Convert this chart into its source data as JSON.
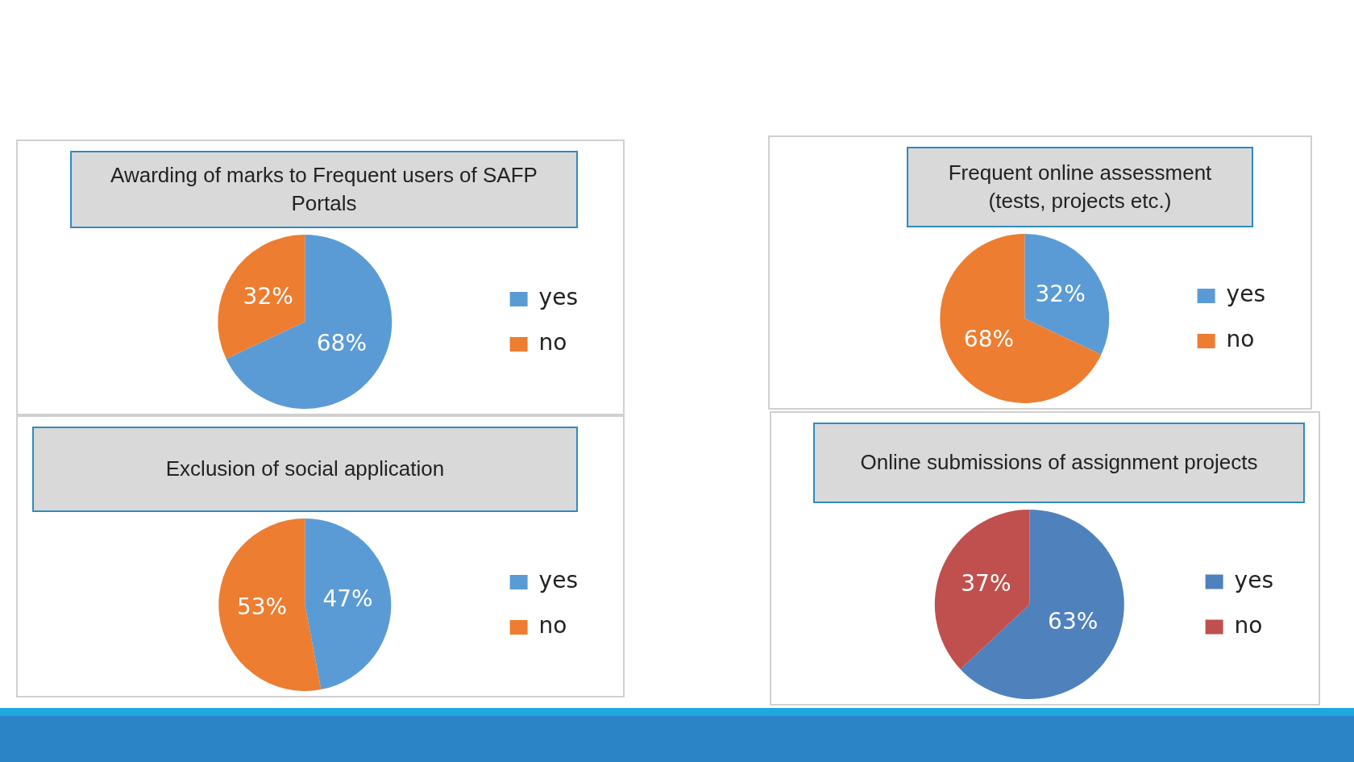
{
  "chart_data": [
    {
      "type": "pie",
      "title": "Awarding of marks to Frequent users of SAFP Portals",
      "categories": [
        "yes",
        "no"
      ],
      "values": [
        68,
        32
      ],
      "colors": [
        "#5b9bd5",
        "#ed7d31"
      ],
      "value_labels": [
        "68%",
        "32%"
      ],
      "legend": "right"
    },
    {
      "type": "pie",
      "title": "Frequent online assessment (tests, projects etc.)",
      "categories": [
        "yes",
        "no"
      ],
      "values": [
        32,
        68
      ],
      "colors": [
        "#5b9bd5",
        "#ed7d31"
      ],
      "value_labels": [
        "32%",
        "68%"
      ],
      "legend": "right"
    },
    {
      "type": "pie",
      "title": "Exclusion of social application",
      "categories": [
        "yes",
        "no"
      ],
      "values": [
        47,
        53
      ],
      "colors": [
        "#5b9bd5",
        "#ed7d31"
      ],
      "value_labels": [
        "47%",
        "53%"
      ],
      "legend": "right"
    },
    {
      "type": "pie",
      "title": "Online submissions of assignment projects",
      "categories": [
        "yes",
        "no"
      ],
      "values": [
        63,
        37
      ],
      "colors": [
        "#4f81bd",
        "#c0504d"
      ],
      "value_labels": [
        "63%",
        "37%"
      ],
      "legend": "right"
    }
  ]
}
